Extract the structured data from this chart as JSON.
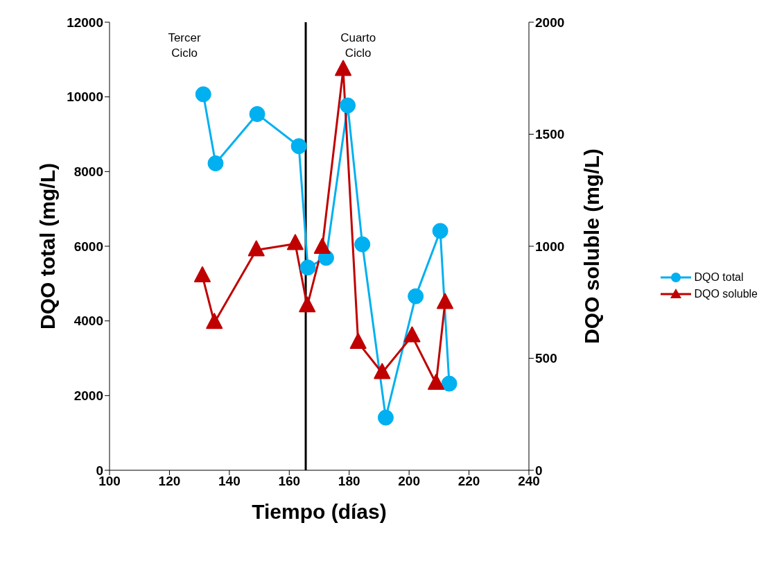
{
  "chart_data": {
    "type": "line",
    "xlabel": "Tiempo (días)",
    "ylabel": "DQO total (mg/L)",
    "y2label": "DQO soluble (mg/L)",
    "xlim": [
      100,
      240
    ],
    "xticks": [
      100,
      120,
      140,
      160,
      180,
      200,
      220,
      240
    ],
    "ylim": [
      0,
      12000
    ],
    "yticks": [
      0,
      2000,
      4000,
      6000,
      8000,
      10000,
      12000
    ],
    "y2lim": [
      0,
      2000
    ],
    "y2ticks": [
      0,
      500,
      1000,
      1500,
      2000
    ],
    "series": [
      {
        "name": "DQO total",
        "color": "#00b0f0",
        "marker": "circle",
        "x": [
          131.3,
          135.4,
          149.3,
          163.2,
          166.2,
          172.3,
          179.5,
          184.4,
          192.2,
          202.2,
          210.4,
          213.4
        ],
        "values": [
          10070,
          8220,
          9540,
          8680,
          5430,
          5690,
          9770,
          6050,
          1410,
          4660,
          6410,
          2320
        ]
      },
      {
        "name": "DQO soluble",
        "color": "#c00000",
        "marker": "triangle",
        "axis": "y2",
        "x": [
          131,
          135,
          149,
          162,
          166,
          171,
          178,
          183,
          191,
          201,
          209,
          212
        ],
        "values": [
          867,
          659,
          983,
          1011,
          733,
          994,
          1788,
          570,
          435,
          599,
          387,
          748
        ]
      }
    ],
    "ref_lines": [
      {
        "axis": "x",
        "value": 165.5,
        "color": "#000000"
      }
    ],
    "annotations": [
      "Tercer\nCiclo",
      "Cuarto\nCiclo"
    ],
    "legend": "right"
  }
}
